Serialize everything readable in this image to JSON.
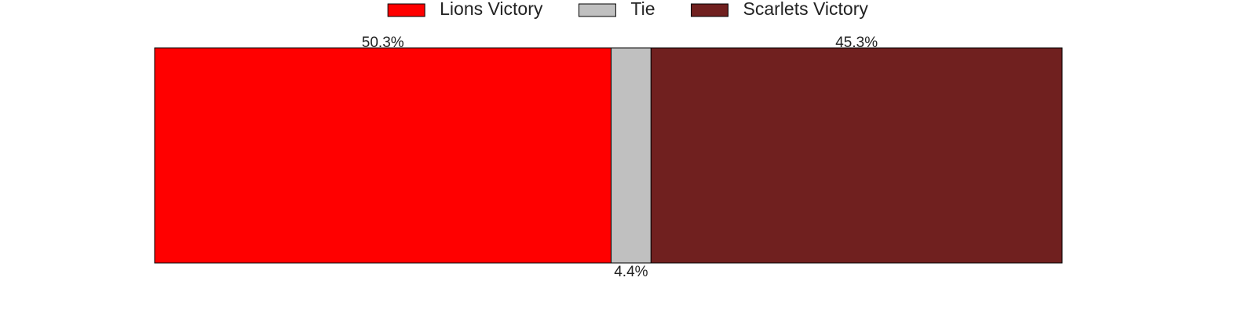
{
  "chart_data": {
    "type": "stacked_bar",
    "orientation": "horizontal",
    "legend": "upper center",
    "series": [
      {
        "name": "Lions Victory",
        "color": "#ff0000",
        "values": [
          50.3
        ],
        "value_labels": [
          "50.3%"
        ]
      },
      {
        "name": "Tie",
        "color": "#c0c0c0",
        "values": [
          4.4
        ],
        "value_labels": [
          "4.4%"
        ]
      },
      {
        "name": "Scarlets Victory",
        "color": "#70201f",
        "values": [
          45.3
        ],
        "value_labels": [
          "45.3%"
        ]
      }
    ]
  }
}
